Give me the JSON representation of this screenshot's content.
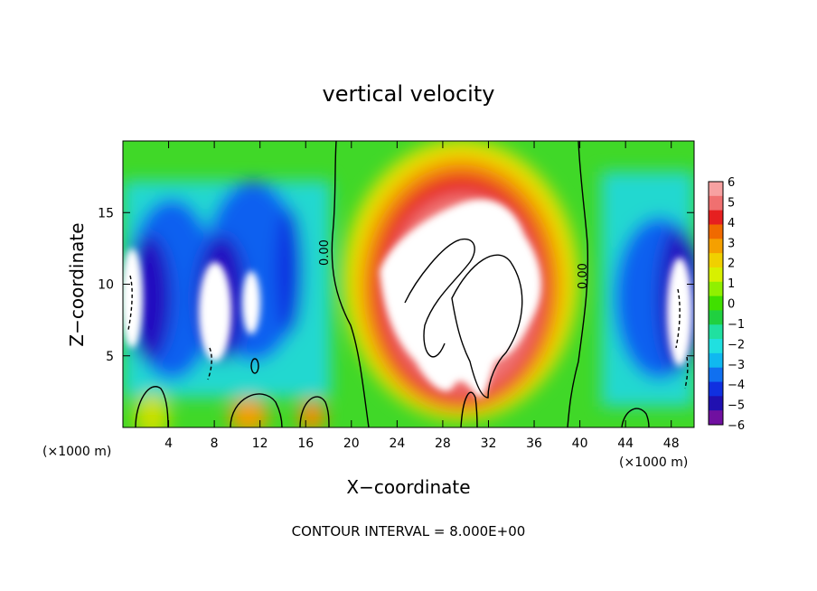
{
  "chart_data": {
    "type": "heatmap",
    "title": "vertical velocity",
    "xlabel": "X−coordinate",
    "ylabel": "Z−coordinate",
    "x_unit_left": "(×1000 m)",
    "x_unit_right": "(×1000 m)",
    "footer": "CONTOUR INTERVAL = 8.000E+00",
    "xlim": [
      0,
      50
    ],
    "ylim": [
      0,
      20
    ],
    "xticks": [
      4,
      8,
      12,
      16,
      20,
      24,
      28,
      32,
      36,
      40,
      44,
      48
    ],
    "xtick_labels": [
      "4",
      "8",
      "12",
      "16",
      "20",
      "24",
      "28",
      "32",
      "36",
      "40",
      "44",
      "48"
    ],
    "yticks": [
      5,
      10,
      15
    ],
    "ytick_labels": [
      "5",
      "10",
      "15"
    ],
    "colorbar": {
      "min": -6,
      "max": 6,
      "tick_labels": [
        "6",
        "5",
        "4",
        "3",
        "2",
        "1",
        "0",
        "−1",
        "−2",
        "−3",
        "−4",
        "−5",
        "−6"
      ],
      "colors": [
        "#f7a1a1",
        "#f07070",
        "#e62020",
        "#f06a00",
        "#f5a000",
        "#f0d000",
        "#d8f000",
        "#90f000",
        "#40e000",
        "#20d040",
        "#20e0a0",
        "#20e0e0",
        "#10b8f0",
        "#1070f0",
        "#1030e0",
        "#2010b0",
        "#7010a0"
      ]
    },
    "contour_labels": [
      "0.00",
      "0.00"
    ],
    "grid": false,
    "legend": "colorbar-right"
  }
}
